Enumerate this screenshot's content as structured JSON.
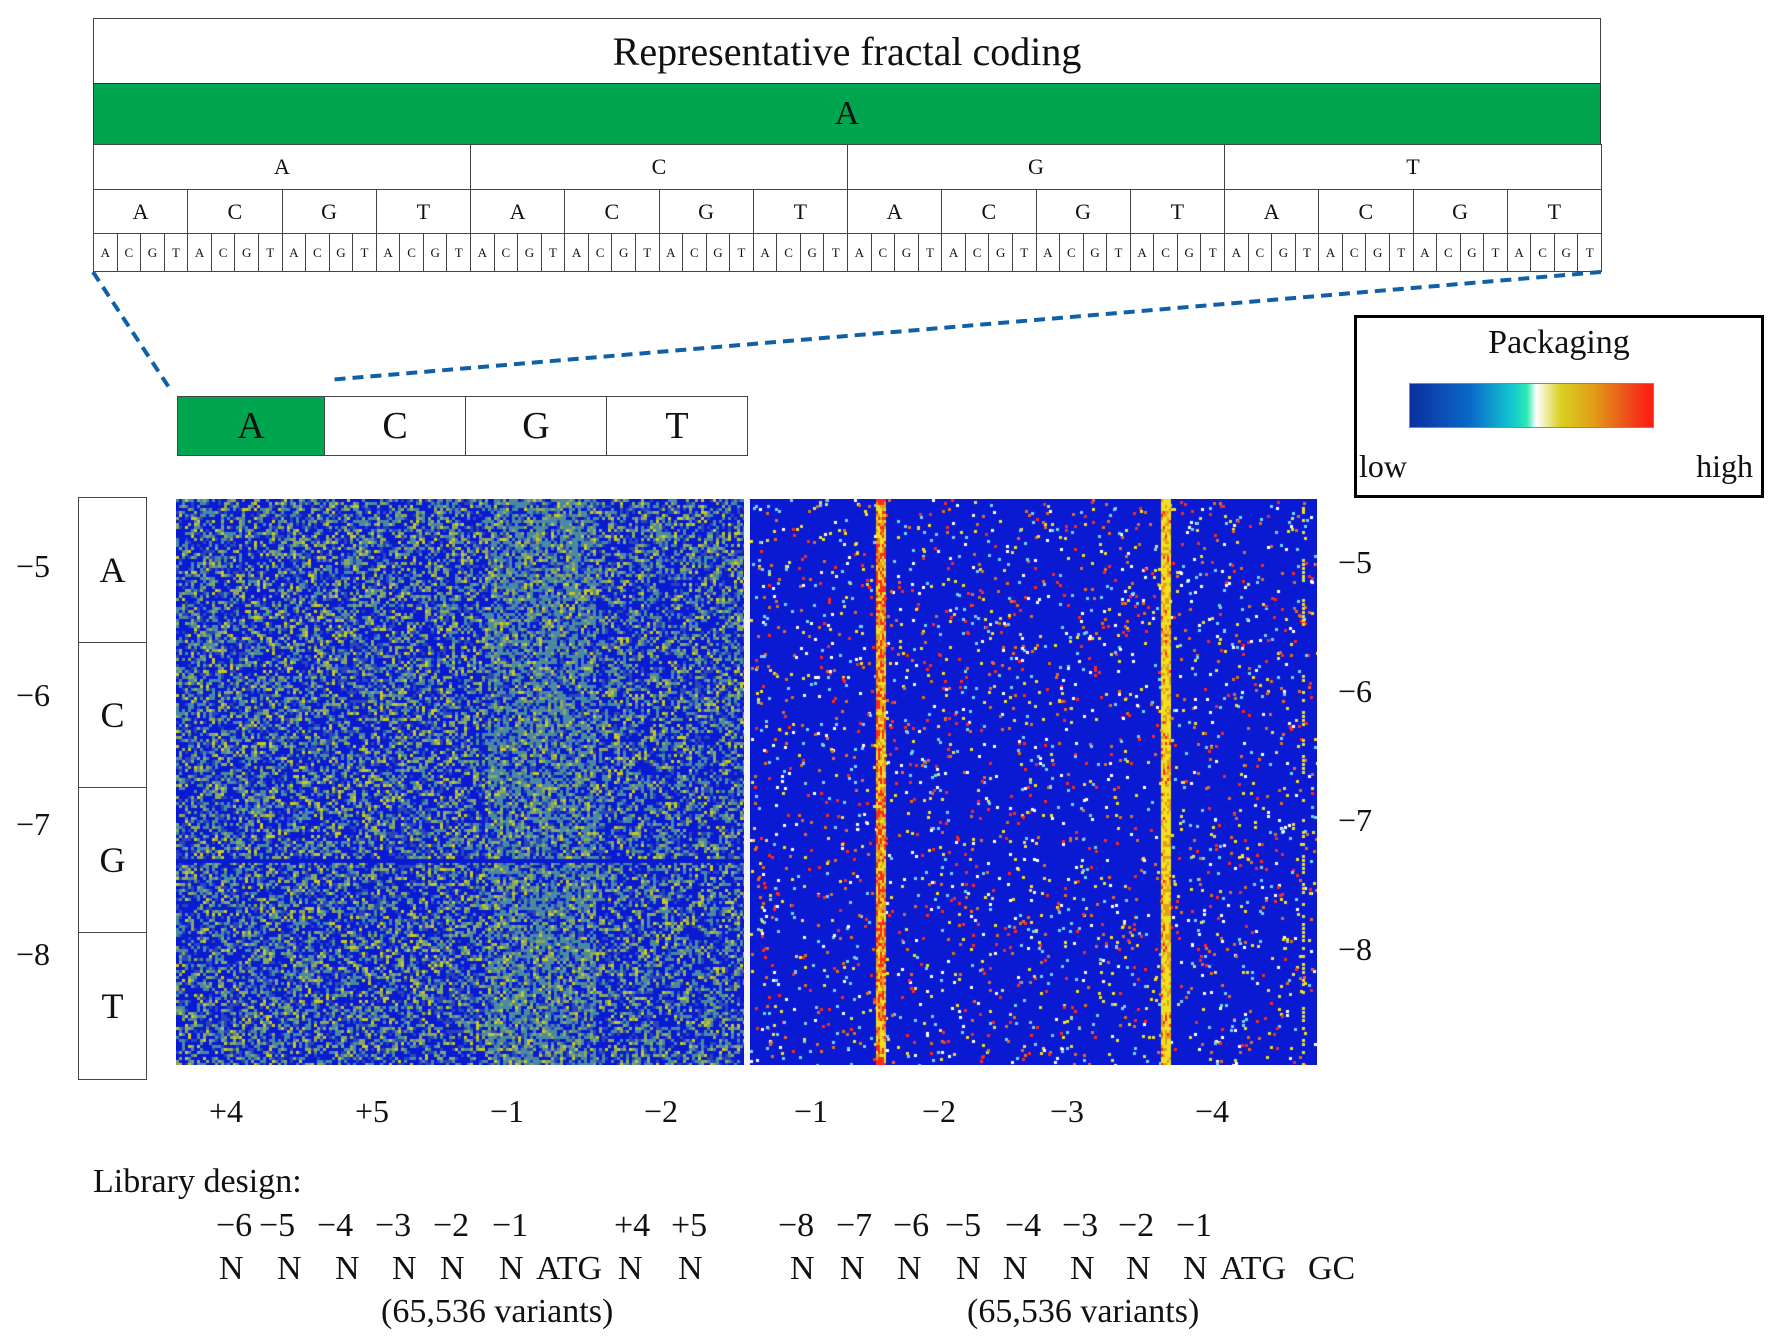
{
  "fractal": {
    "title": "Representative fractal coding",
    "root": "A",
    "level1": [
      "A",
      "C",
      "G",
      "T"
    ],
    "level2": [
      "A",
      "C",
      "G",
      "T",
      "A",
      "C",
      "G",
      "T",
      "A",
      "C",
      "G",
      "T",
      "A",
      "C",
      "G",
      "T"
    ],
    "level3_cycle": [
      "A",
      "C",
      "G",
      "T"
    ]
  },
  "key": {
    "cells": [
      "A",
      "C",
      "G",
      "T"
    ],
    "highlight": "A"
  },
  "row_key": [
    "A",
    "C",
    "G",
    "T"
  ],
  "left_y_labels": [
    "−5",
    "−6",
    "−7",
    "−8"
  ],
  "right_y_labels": [
    "−5",
    "−6",
    "−7",
    "−8"
  ],
  "left_x_labels": [
    "+4",
    "+5",
    "−1",
    "−2"
  ],
  "right_x_labels": [
    "−1",
    "−2",
    "−3",
    "−4"
  ],
  "legend": {
    "title": "Packaging",
    "low": "low",
    "high": "high"
  },
  "library": {
    "heading": "Library design:",
    "left_positions": [
      "−6",
      "−5",
      "−4",
      "−3",
      "−2",
      "−1",
      "+4",
      "+5"
    ],
    "left_bases": [
      "N",
      "N",
      "N",
      "N",
      "N",
      "N",
      "ATG",
      "N",
      "N"
    ],
    "left_variants": "(65,536 variants)",
    "right_positions": [
      "−8",
      "−7",
      "−6",
      "−5",
      "−4",
      "−3",
      "−2",
      "−1"
    ],
    "right_bases": [
      "N",
      "N",
      "N",
      "N",
      "N",
      "N",
      "N",
      "N",
      "ATG",
      "GC"
    ],
    "right_variants": "(65,536 variants)"
  },
  "colors": {
    "green": "#00a550",
    "heat_blue": "#0a1ad2",
    "heat_yellow": "#c8c820",
    "heat_red": "#ff2a1a",
    "dash": "#1060a8"
  }
}
